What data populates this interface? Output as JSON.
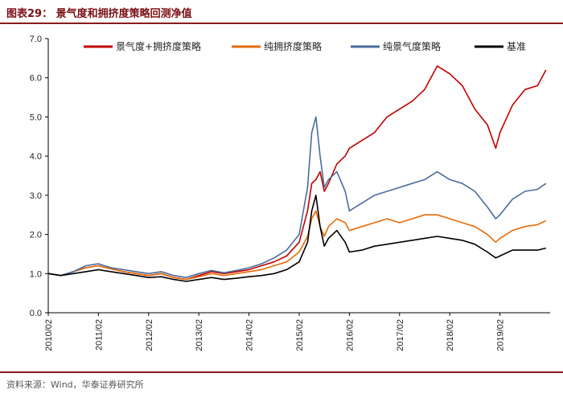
{
  "header": {
    "title": "图表29：  景气度和拥挤度策略回测净值"
  },
  "footer": {
    "source": "资料来源：Wind，华泰证券研究所"
  },
  "colors": {
    "accent": "#8b1a1a"
  },
  "chart_data": {
    "type": "line",
    "title": "",
    "xlabel": "",
    "ylabel": "",
    "ylim": [
      0,
      7
    ],
    "yticks": [
      "0.0",
      "1.0",
      "2.0",
      "3.0",
      "4.0",
      "5.0",
      "6.0",
      "7.0"
    ],
    "xticks": [
      "2010/02",
      "2011/02",
      "2012/02",
      "2013/02",
      "2014/02",
      "2015/02",
      "2016/02",
      "2017/02",
      "2018/02",
      "2019/02"
    ],
    "xlim": [
      "2010-02",
      "2020-02"
    ],
    "grid": false,
    "legend": "top",
    "x": [
      "2010-02",
      "2010-05",
      "2010-08",
      "2010-11",
      "2011-02",
      "2011-05",
      "2011-08",
      "2011-11",
      "2012-02",
      "2012-05",
      "2012-08",
      "2012-11",
      "2013-02",
      "2013-05",
      "2013-08",
      "2013-11",
      "2014-02",
      "2014-05",
      "2014-08",
      "2014-11",
      "2015-02",
      "2015-04",
      "2015-05",
      "2015-06",
      "2015-07",
      "2015-08",
      "2015-09",
      "2015-11",
      "2016-01",
      "2016-02",
      "2016-05",
      "2016-08",
      "2016-11",
      "2017-02",
      "2017-05",
      "2017-08",
      "2017-11",
      "2018-02",
      "2018-05",
      "2018-08",
      "2018-11",
      "2019-01",
      "2019-02",
      "2019-05",
      "2019-08",
      "2019-11",
      "2020-01"
    ],
    "series": [
      {
        "name": "景气度+拥挤度策略",
        "color": "#c00000",
        "values": [
          1.0,
          0.95,
          1.05,
          1.15,
          1.2,
          1.12,
          1.05,
          1.0,
          0.95,
          1.0,
          0.9,
          0.85,
          0.95,
          1.05,
          1.0,
          1.05,
          1.1,
          1.2,
          1.3,
          1.45,
          1.8,
          2.6,
          3.3,
          3.4,
          3.6,
          3.1,
          3.3,
          3.8,
          4.0,
          4.2,
          4.4,
          4.6,
          5.0,
          5.2,
          5.4,
          5.7,
          6.3,
          6.1,
          5.8,
          5.2,
          4.8,
          4.2,
          4.6,
          5.3,
          5.7,
          5.8,
          6.2
        ]
      },
      {
        "name": "纯拥挤度策略",
        "color": "#e46c0a",
        "values": [
          1.0,
          0.95,
          1.05,
          1.15,
          1.2,
          1.12,
          1.05,
          1.0,
          0.95,
          1.0,
          0.9,
          0.85,
          0.92,
          1.0,
          0.95,
          1.0,
          1.05,
          1.1,
          1.2,
          1.3,
          1.55,
          1.95,
          2.4,
          2.6,
          2.2,
          1.95,
          2.2,
          2.4,
          2.3,
          2.1,
          2.2,
          2.3,
          2.4,
          2.3,
          2.4,
          2.5,
          2.5,
          2.4,
          2.3,
          2.2,
          2.0,
          1.8,
          1.9,
          2.1,
          2.2,
          2.25,
          2.35
        ]
      },
      {
        "name": "纯景气度策略",
        "color": "#4a6d9c",
        "values": [
          1.0,
          0.95,
          1.05,
          1.2,
          1.25,
          1.15,
          1.1,
          1.05,
          1.0,
          1.05,
          0.95,
          0.9,
          1.0,
          1.08,
          1.02,
          1.08,
          1.15,
          1.25,
          1.4,
          1.6,
          2.0,
          3.2,
          4.6,
          5.0,
          4.0,
          3.2,
          3.4,
          3.6,
          3.1,
          2.6,
          2.8,
          3.0,
          3.1,
          3.2,
          3.3,
          3.4,
          3.6,
          3.4,
          3.3,
          3.1,
          2.7,
          2.4,
          2.5,
          2.9,
          3.1,
          3.15,
          3.3
        ]
      },
      {
        "name": "基准",
        "color": "#000000",
        "values": [
          1.0,
          0.95,
          1.0,
          1.05,
          1.1,
          1.05,
          1.0,
          0.95,
          0.9,
          0.92,
          0.85,
          0.8,
          0.85,
          0.9,
          0.85,
          0.88,
          0.92,
          0.95,
          1.0,
          1.1,
          1.3,
          1.8,
          2.6,
          3.0,
          2.2,
          1.7,
          1.9,
          2.1,
          1.8,
          1.55,
          1.6,
          1.7,
          1.75,
          1.8,
          1.85,
          1.9,
          1.95,
          1.9,
          1.85,
          1.75,
          1.55,
          1.4,
          1.45,
          1.6,
          1.6,
          1.6,
          1.65
        ]
      }
    ]
  }
}
